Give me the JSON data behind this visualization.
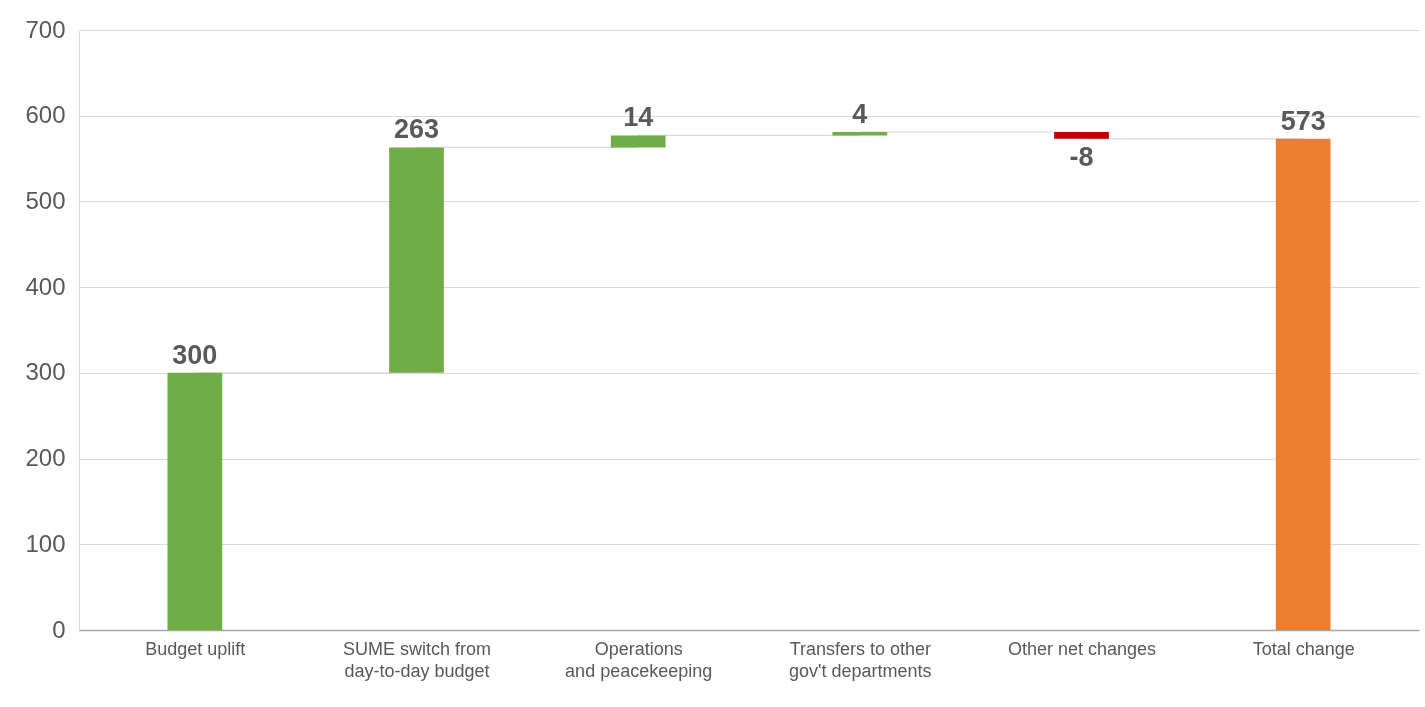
{
  "chart_data": {
    "type": "bar",
    "categories": [
      "Budget uplift",
      "SUME switch from\nday-to-day budget",
      "Operations\nand peacekeeping",
      "Transfers to other\ngov't departments",
      "Other net changes",
      "Total change"
    ],
    "values": [
      300,
      263,
      14,
      4,
      -8,
      573
    ],
    "base": [
      0,
      300,
      563,
      577,
      581,
      0
    ],
    "colors": [
      "#70ad47",
      "#70ad47",
      "#70ad47",
      "#70ad47",
      "#c00000",
      "#ed7d31"
    ],
    "ylim": [
      0,
      700
    ],
    "yticks": [
      0,
      100,
      200,
      300,
      400,
      500,
      600,
      700
    ],
    "grid": "y",
    "data_labels": true
  }
}
